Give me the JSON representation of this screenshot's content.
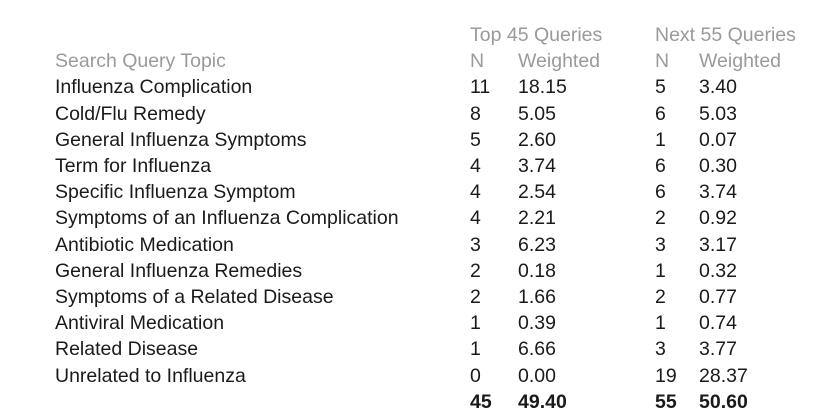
{
  "header": {
    "group_top": "Top 45 Queries",
    "group_next": "Next 55 Queries",
    "topic": "Search Query Topic",
    "n": "N",
    "weighted": "Weighted"
  },
  "rows": [
    {
      "topic": "Influenza Complication",
      "top_n": "11",
      "top_w": "18.15",
      "next_n": "5",
      "next_w": "3.40"
    },
    {
      "topic": "Cold/Flu Remedy",
      "top_n": "8",
      "top_w": "5.05",
      "next_n": "6",
      "next_w": "5.03"
    },
    {
      "topic": "General Influenza Symptoms",
      "top_n": "5",
      "top_w": "2.60",
      "next_n": "1",
      "next_w": "0.07"
    },
    {
      "topic": "Term for Influenza",
      "top_n": "4",
      "top_w": "3.74",
      "next_n": "6",
      "next_w": "0.30"
    },
    {
      "topic": "Specific Influenza Symptom",
      "top_n": "4",
      "top_w": "2.54",
      "next_n": "6",
      "next_w": "3.74"
    },
    {
      "topic": "Symptoms of an Influenza Complication",
      "top_n": "4",
      "top_w": "2.21",
      "next_n": "2",
      "next_w": "0.92"
    },
    {
      "topic": "Antibiotic Medication",
      "top_n": "3",
      "top_w": "6.23",
      "next_n": "3",
      "next_w": "3.17"
    },
    {
      "topic": "General Influenza Remedies",
      "top_n": "2",
      "top_w": "0.18",
      "next_n": "1",
      "next_w": "0.32"
    },
    {
      "topic": "Symptoms of a Related Disease",
      "top_n": "2",
      "top_w": "1.66",
      "next_n": "2",
      "next_w": "0.77"
    },
    {
      "topic": "Antiviral Medication",
      "top_n": "1",
      "top_w": "0.39",
      "next_n": "1",
      "next_w": "0.74"
    },
    {
      "topic": "Related Disease",
      "top_n": "1",
      "top_w": "6.66",
      "next_n": "3",
      "next_w": "3.77"
    },
    {
      "topic": "Unrelated to Influenza",
      "top_n": "0",
      "top_w": "0.00",
      "next_n": "19",
      "next_w": "28.37"
    }
  ],
  "totals": {
    "top_n": "45",
    "top_w": "49.40",
    "next_n": "55",
    "next_w": "50.60"
  },
  "colors": {
    "header_text": "#9a9a9a",
    "body_text": "#1a1a1a"
  }
}
